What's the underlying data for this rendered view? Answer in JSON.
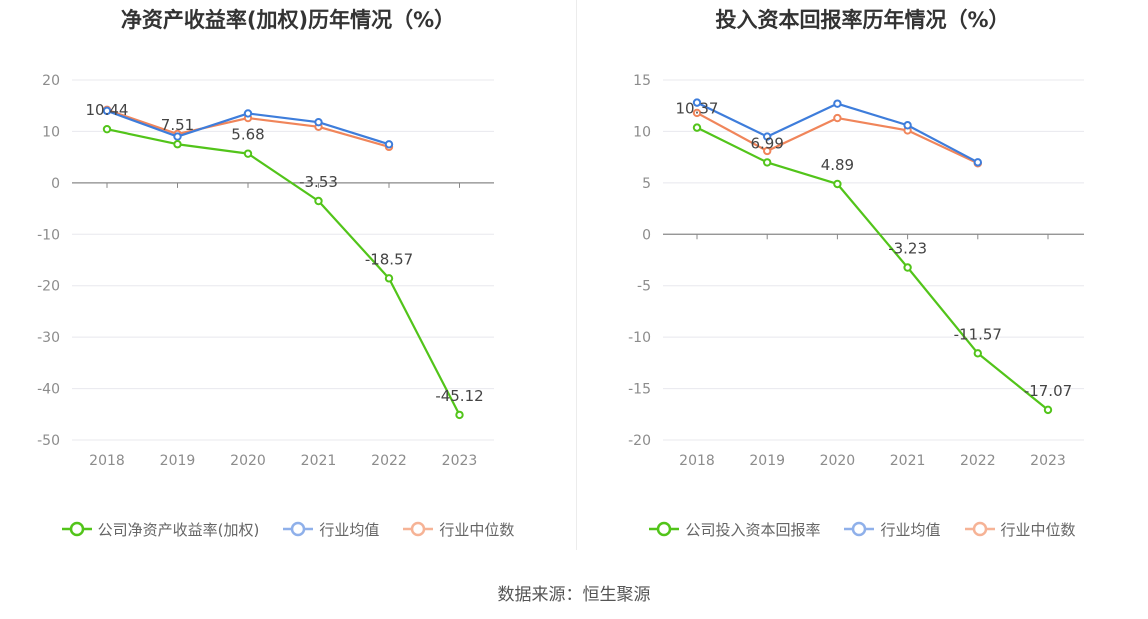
{
  "chart_data": [
    {
      "type": "line",
      "title": "净资产收益率(加权)历年情况（%）",
      "categories": [
        "2018",
        "2019",
        "2020",
        "2021",
        "2022",
        "2023"
      ],
      "ylim": [
        -50,
        20
      ],
      "yticks": [
        20,
        10,
        0,
        -10,
        -20,
        -30,
        -40,
        -50
      ],
      "series": [
        {
          "name": "公司净资产收益率(加权)",
          "color": "#52c41a",
          "values": [
            10.44,
            7.51,
            5.68,
            -3.53,
            -18.57,
            -45.12
          ],
          "show_labels": true
        },
        {
          "name": "行业均值",
          "color": "#3e7ddb",
          "values": [
            14.0,
            9.0,
            13.5,
            11.8,
            7.5,
            null
          ],
          "show_labels": false
        },
        {
          "name": "行业中位数",
          "color": "#f0855a",
          "values": [
            14.2,
            9.5,
            12.6,
            10.9,
            7.0,
            null
          ],
          "show_labels": false
        }
      ],
      "data_labels": [
        "10.44",
        "7.51",
        "5.68",
        "-3.53",
        "-18.57",
        "-45.12"
      ],
      "legend": "bottom"
    },
    {
      "type": "line",
      "title": "投入资本回报率历年情况（%）",
      "categories": [
        "2018",
        "2019",
        "2020",
        "2021",
        "2022",
        "2023"
      ],
      "ylim": [
        -20,
        15
      ],
      "yticks": [
        15,
        10,
        5,
        0,
        -5,
        -10,
        -15,
        -20
      ],
      "series": [
        {
          "name": "公司投入资本回报率",
          "color": "#52c41a",
          "values": [
            10.37,
            6.99,
            4.89,
            -3.23,
            -11.57,
            -17.07
          ],
          "show_labels": true
        },
        {
          "name": "行业均值",
          "color": "#3e7ddb",
          "values": [
            12.8,
            9.5,
            12.7,
            10.6,
            7.0,
            null
          ],
          "show_labels": false
        },
        {
          "name": "行业中位数",
          "color": "#f0855a",
          "values": [
            11.8,
            8.1,
            11.3,
            10.1,
            6.9,
            null
          ],
          "show_labels": false
        }
      ],
      "data_labels": [
        "10.37",
        "6.99",
        "4.89",
        "-3.23",
        "-11.57",
        "-17.07"
      ],
      "legend": "bottom"
    }
  ],
  "footer": {
    "source": "数据来源：恒生聚源"
  }
}
